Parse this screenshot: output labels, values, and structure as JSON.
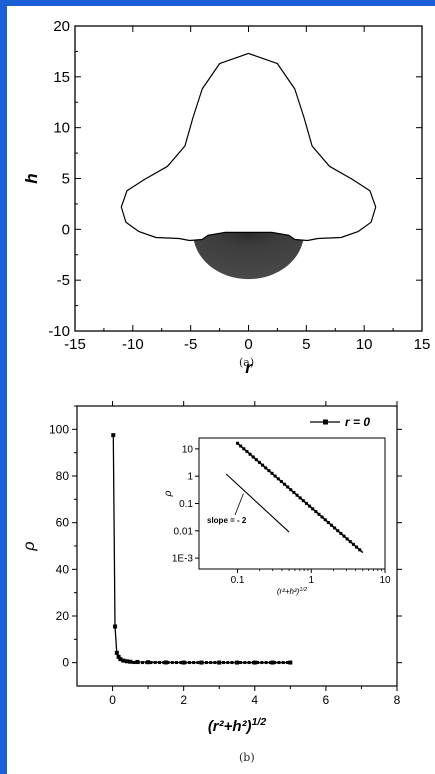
{
  "colors": {
    "border": "#1a5fd6",
    "ink": "#000000",
    "shade": "#4a4a4a"
  },
  "captions": {
    "a": "(a)",
    "b": "(b)"
  },
  "chart_data": [
    {
      "type": "line",
      "panel": "a",
      "xlabel": "r",
      "ylabel": "h",
      "xlim": [
        -15,
        15
      ],
      "ylim": [
        -10,
        20
      ],
      "x_ticks": [
        -15,
        -10,
        -5,
        0,
        5,
        10,
        15
      ],
      "y_ticks": [
        -10,
        -5,
        0,
        5,
        10,
        15,
        20
      ],
      "x_tick_labels": [
        "-15",
        "-10",
        "-5",
        "0",
        "5",
        "10",
        "15"
      ],
      "y_tick_labels": [
        "-10",
        "-5",
        "0",
        "5",
        "10",
        "15",
        "20"
      ],
      "outline": {
        "x": [
          0,
          2.5,
          4,
          4.8,
          5.5,
          7,
          9,
          10.5,
          11.0,
          10.6,
          9.5,
          8,
          6,
          5.1,
          4,
          3.5,
          2,
          0
        ],
        "y": [
          17.3,
          16.3,
          13.8,
          11,
          8.2,
          6.2,
          4.9,
          3.8,
          2.2,
          0.7,
          -0.2,
          -0.8,
          -0.9,
          -1.1,
          -1.0,
          -0.6,
          -0.3,
          -0.3
        ]
      },
      "shaded_region": {
        "center_x": 0,
        "center_y": -0.3,
        "radius_x": 4.8,
        "radius_y": 4.6
      }
    },
    {
      "type": "scatter",
      "panel": "b",
      "xlabel": "(r²+h²)^1/2",
      "ylabel": "ρ",
      "xlim": [
        -1,
        8
      ],
      "ylim": [
        -10,
        110
      ],
      "x_ticks": [
        0,
        2,
        4,
        6,
        8
      ],
      "y_ticks": [
        0,
        20,
        40,
        60,
        80,
        100
      ],
      "x_tick_labels": [
        "0",
        "2",
        "4",
        "6",
        "8"
      ],
      "y_tick_labels": [
        "0",
        "20",
        "40",
        "60",
        "80",
        "100"
      ],
      "legend": {
        "position": "top-right",
        "label": "r = 0"
      },
      "series": [
        {
          "name": "r = 0",
          "x": [
            0.02,
            0.07,
            0.12,
            0.17,
            0.22,
            0.3,
            0.4,
            0.5,
            0.7,
            1.0,
            1.5,
            2.0,
            2.5,
            3.0,
            3.5,
            4.0,
            4.5,
            5.0
          ],
          "y": [
            97.5,
            15.5,
            4.2,
            2.5,
            1.5,
            0.9,
            0.6,
            0.4,
            0.3,
            0.2,
            0.1,
            0.05,
            0.05,
            0.05,
            0.05,
            0.05,
            0.05,
            0.05
          ]
        }
      ],
      "inset": {
        "xlabel": "(r²+h²)^1/2",
        "ylabel": "ρ",
        "scale": "log-log",
        "x_ticks": [
          0.1,
          1,
          10
        ],
        "y_ticks": [
          0.001,
          0.01,
          0.1,
          1,
          10
        ],
        "x_tick_labels": [
          "0.1",
          "1",
          "10"
        ],
        "y_tick_labels": [
          "1E-3",
          "0.01",
          "0.1",
          "1",
          "10"
        ],
        "xlim": [
          0.03,
          10
        ],
        "ylim": [
          0.0004,
          25
        ],
        "data_line": {
          "x": [
            0.1,
            5.0
          ],
          "y": [
            16,
            0.0016
          ]
        },
        "reference_line": {
          "x": [
            0.07,
            0.5
          ],
          "y": [
            1.2,
            0.009
          ]
        },
        "annotation": "slope = - 2"
      }
    }
  ]
}
